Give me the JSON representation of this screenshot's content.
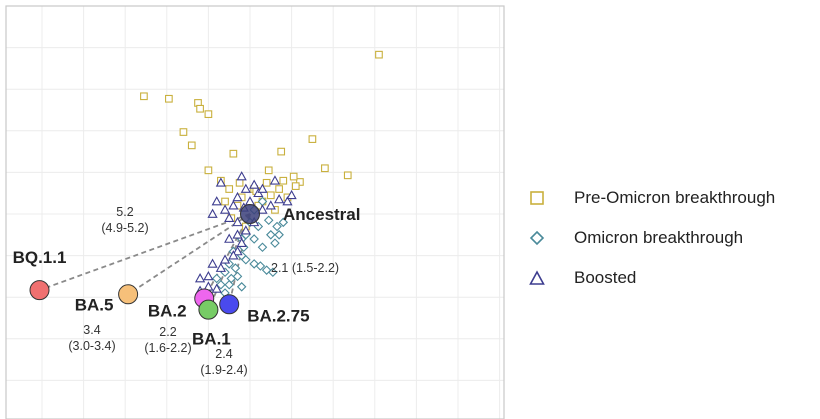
{
  "chart_data": {
    "type": "scatter",
    "title": "",
    "xlabel": "",
    "ylabel": "",
    "grid": true,
    "axis_range": {
      "x": [
        -6,
        6.4
      ],
      "y": [
        -5.2,
        5.2
      ]
    },
    "legend_position": "right",
    "legend": [
      {
        "name": "Pre-Omicron breakthrough",
        "marker": "square",
        "color": "#C9B03D"
      },
      {
        "name": "Omicron breakthrough",
        "marker": "diamond",
        "color": "#4A8A9A"
      },
      {
        "name": "Boosted",
        "marker": "triangle",
        "color": "#3D3D8F"
      }
    ],
    "antigens": [
      {
        "name": "Ancestral",
        "x": 0,
        "y": 0,
        "color": "#3B3F7A"
      },
      {
        "name": "BQ.1.1",
        "x": -5.06,
        "y": -1.83,
        "color": "#F07070"
      },
      {
        "name": "BA.5",
        "x": -2.93,
        "y": -1.93,
        "color": "#F6C07A"
      },
      {
        "name": "BA.2",
        "x": -1.1,
        "y": -2.03,
        "color": "#EE66EE"
      },
      {
        "name": "BA.1",
        "x": -1.0,
        "y": -2.3,
        "color": "#77CC66"
      },
      {
        "name": "BA.2.75",
        "x": -0.5,
        "y": -2.17,
        "color": "#4A4AEE"
      }
    ],
    "distances": [
      {
        "target": "BQ.1.1",
        "value": "5.2",
        "ci": "(4.9-5.2)"
      },
      {
        "target": "BA.5",
        "value": "3.4",
        "ci": "(3.0-3.4)"
      },
      {
        "target": "BA.2",
        "value": "2.2",
        "ci": "(1.6-2.2)"
      },
      {
        "target": "BA.1",
        "value": "2.4",
        "ci": "(1.9-2.4)"
      },
      {
        "target": "BA.2.75",
        "value": "2.1",
        "ci": "(1.5-2.2)"
      }
    ],
    "series": [
      {
        "name": "Pre-Omicron breakthrough",
        "points": [
          [
            3.1,
            3.83
          ],
          [
            -2.55,
            2.83
          ],
          [
            -1.95,
            2.77
          ],
          [
            -1.25,
            2.67
          ],
          [
            -1.2,
            2.53
          ],
          [
            -1.0,
            2.4
          ],
          [
            -1.6,
            1.97
          ],
          [
            -1.4,
            1.65
          ],
          [
            -0.4,
            1.45
          ],
          [
            -1.0,
            1.05
          ],
          [
            0.75,
            1.5
          ],
          [
            1.5,
            1.8
          ],
          [
            1.8,
            1.1
          ],
          [
            2.35,
            0.93
          ],
          [
            1.2,
            0.77
          ],
          [
            1.05,
            0.9
          ],
          [
            1.1,
            0.67
          ],
          [
            -0.7,
            0.8
          ],
          [
            -0.5,
            0.6
          ],
          [
            -0.2,
            0.4
          ],
          [
            0.1,
            0.6
          ],
          [
            0.4,
            0.75
          ],
          [
            0.7,
            0.6
          ],
          [
            -0.6,
            0.3
          ],
          [
            -0.3,
            0.2
          ],
          [
            0.3,
            0.3
          ],
          [
            0.6,
            0.1
          ],
          [
            0.5,
            0.45
          ],
          [
            0.8,
            0.8
          ],
          [
            0.9,
            0.4
          ],
          [
            -0.45,
            -0.1
          ],
          [
            -0.1,
            -0.3
          ],
          [
            0.2,
            0.2
          ],
          [
            0.15,
            0.55
          ],
          [
            -0.25,
            0.75
          ],
          [
            0.45,
            1.05
          ]
        ]
      },
      {
        "name": "Omicron breakthrough",
        "points": [
          [
            0.2,
            -0.3
          ],
          [
            0.5,
            -0.5
          ],
          [
            0.7,
            -0.5
          ],
          [
            0.6,
            -0.7
          ],
          [
            0.3,
            -0.8
          ],
          [
            -0.2,
            -0.6
          ],
          [
            -0.4,
            -0.9
          ],
          [
            -0.2,
            -1.0
          ],
          [
            -0.35,
            -1.3
          ],
          [
            -0.1,
            -1.1
          ],
          [
            -0.3,
            -1.5
          ],
          [
            -0.5,
            -1.7
          ],
          [
            -0.6,
            -1.9
          ],
          [
            -0.7,
            -1.7
          ],
          [
            -0.8,
            -1.55
          ],
          [
            -0.2,
            -1.75
          ],
          [
            0.1,
            -1.2
          ],
          [
            0.25,
            -1.25
          ],
          [
            0.4,
            -1.35
          ],
          [
            0.55,
            -1.4
          ],
          [
            -0.1,
            -0.5
          ],
          [
            0.1,
            -0.6
          ],
          [
            0.8,
            -0.2
          ],
          [
            0.65,
            -0.3
          ],
          [
            0.3,
            0.3
          ],
          [
            0.0,
            -0.2
          ],
          [
            0.1,
            0.1
          ],
          [
            0.45,
            -0.15
          ],
          [
            -0.15,
            -0.8
          ],
          [
            -0.5,
            -1.2
          ],
          [
            -0.6,
            -1.4
          ],
          [
            -0.45,
            -1.55
          ]
        ]
      },
      {
        "name": "Boosted",
        "points": [
          [
            0.0,
            0.3
          ],
          [
            0.2,
            0.5
          ],
          [
            0.3,
            0.6
          ],
          [
            0.1,
            0.7
          ],
          [
            -0.1,
            0.6
          ],
          [
            -0.3,
            0.4
          ],
          [
            -0.4,
            0.2
          ],
          [
            -0.6,
            0.1
          ],
          [
            -0.8,
            0.3
          ],
          [
            -0.9,
            0.0
          ],
          [
            -0.5,
            -0.1
          ],
          [
            -0.3,
            -0.2
          ],
          [
            -0.1,
            -0.4
          ],
          [
            -0.2,
            -0.7
          ],
          [
            -0.3,
            -0.9
          ],
          [
            -0.4,
            -1.0
          ],
          [
            -0.6,
            -1.1
          ],
          [
            -0.7,
            -1.3
          ],
          [
            -0.9,
            -1.2
          ],
          [
            -1.0,
            -1.5
          ],
          [
            -1.2,
            -1.55
          ],
          [
            -0.8,
            -1.8
          ],
          [
            -0.5,
            -0.6
          ],
          [
            -0.3,
            -0.5
          ],
          [
            0.1,
            -0.2
          ],
          [
            0.5,
            0.2
          ],
          [
            0.7,
            0.35
          ],
          [
            0.9,
            0.3
          ],
          [
            1.0,
            0.45
          ],
          [
            -0.7,
            0.75
          ],
          [
            -0.2,
            0.9
          ],
          [
            0.6,
            0.8
          ],
          [
            -1.0,
            -1.75
          ],
          [
            -1.2,
            -1.85
          ],
          [
            -0.15,
            0.15
          ],
          [
            0.3,
            0.1
          ]
        ]
      }
    ]
  }
}
